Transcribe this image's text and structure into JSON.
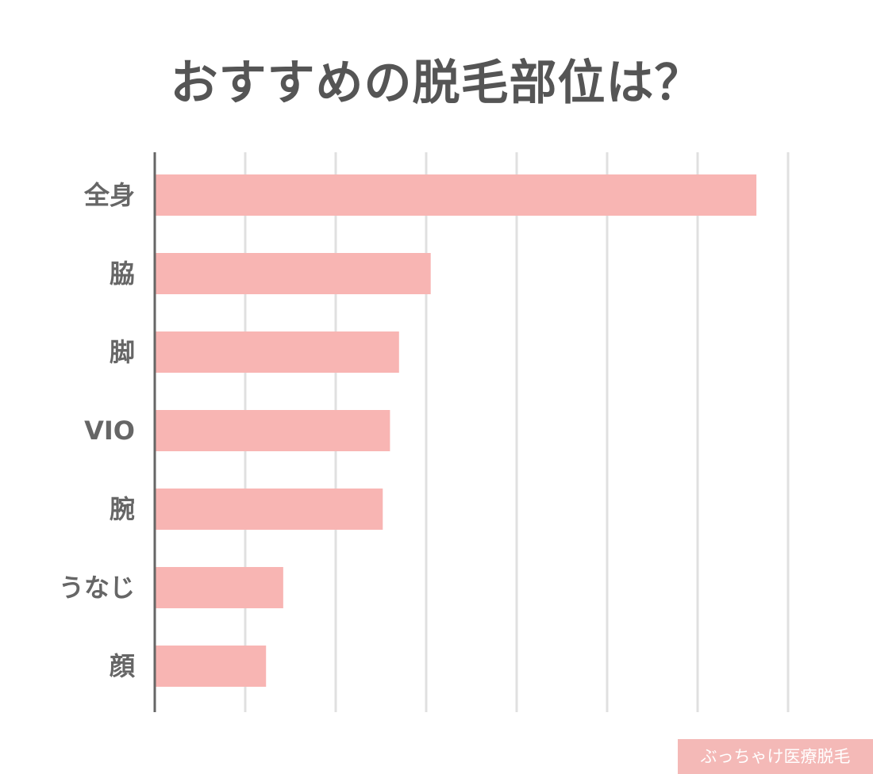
{
  "title": "おすすめの脱毛部位は？",
  "watermark": "ぶっちゃけ医療脱毛",
  "colors": {
    "bar": "#f8b5b3",
    "grid": "#e0e0e0",
    "axis": "#666666",
    "label": "#666666",
    "title": "#555555"
  },
  "chart_data": {
    "type": "bar",
    "orientation": "horizontal",
    "title": "おすすめの脱毛部位は？",
    "categories": [
      "全身",
      "脇",
      "脚",
      "VIO",
      "腕",
      "うなじ",
      "顔"
    ],
    "values": [
      66.5,
      30.5,
      27,
      26,
      25.2,
      14.2,
      12.3
    ],
    "xlim": [
      0,
      70
    ],
    "grid": true,
    "gridlines": 7,
    "show_tick_labels": false
  }
}
